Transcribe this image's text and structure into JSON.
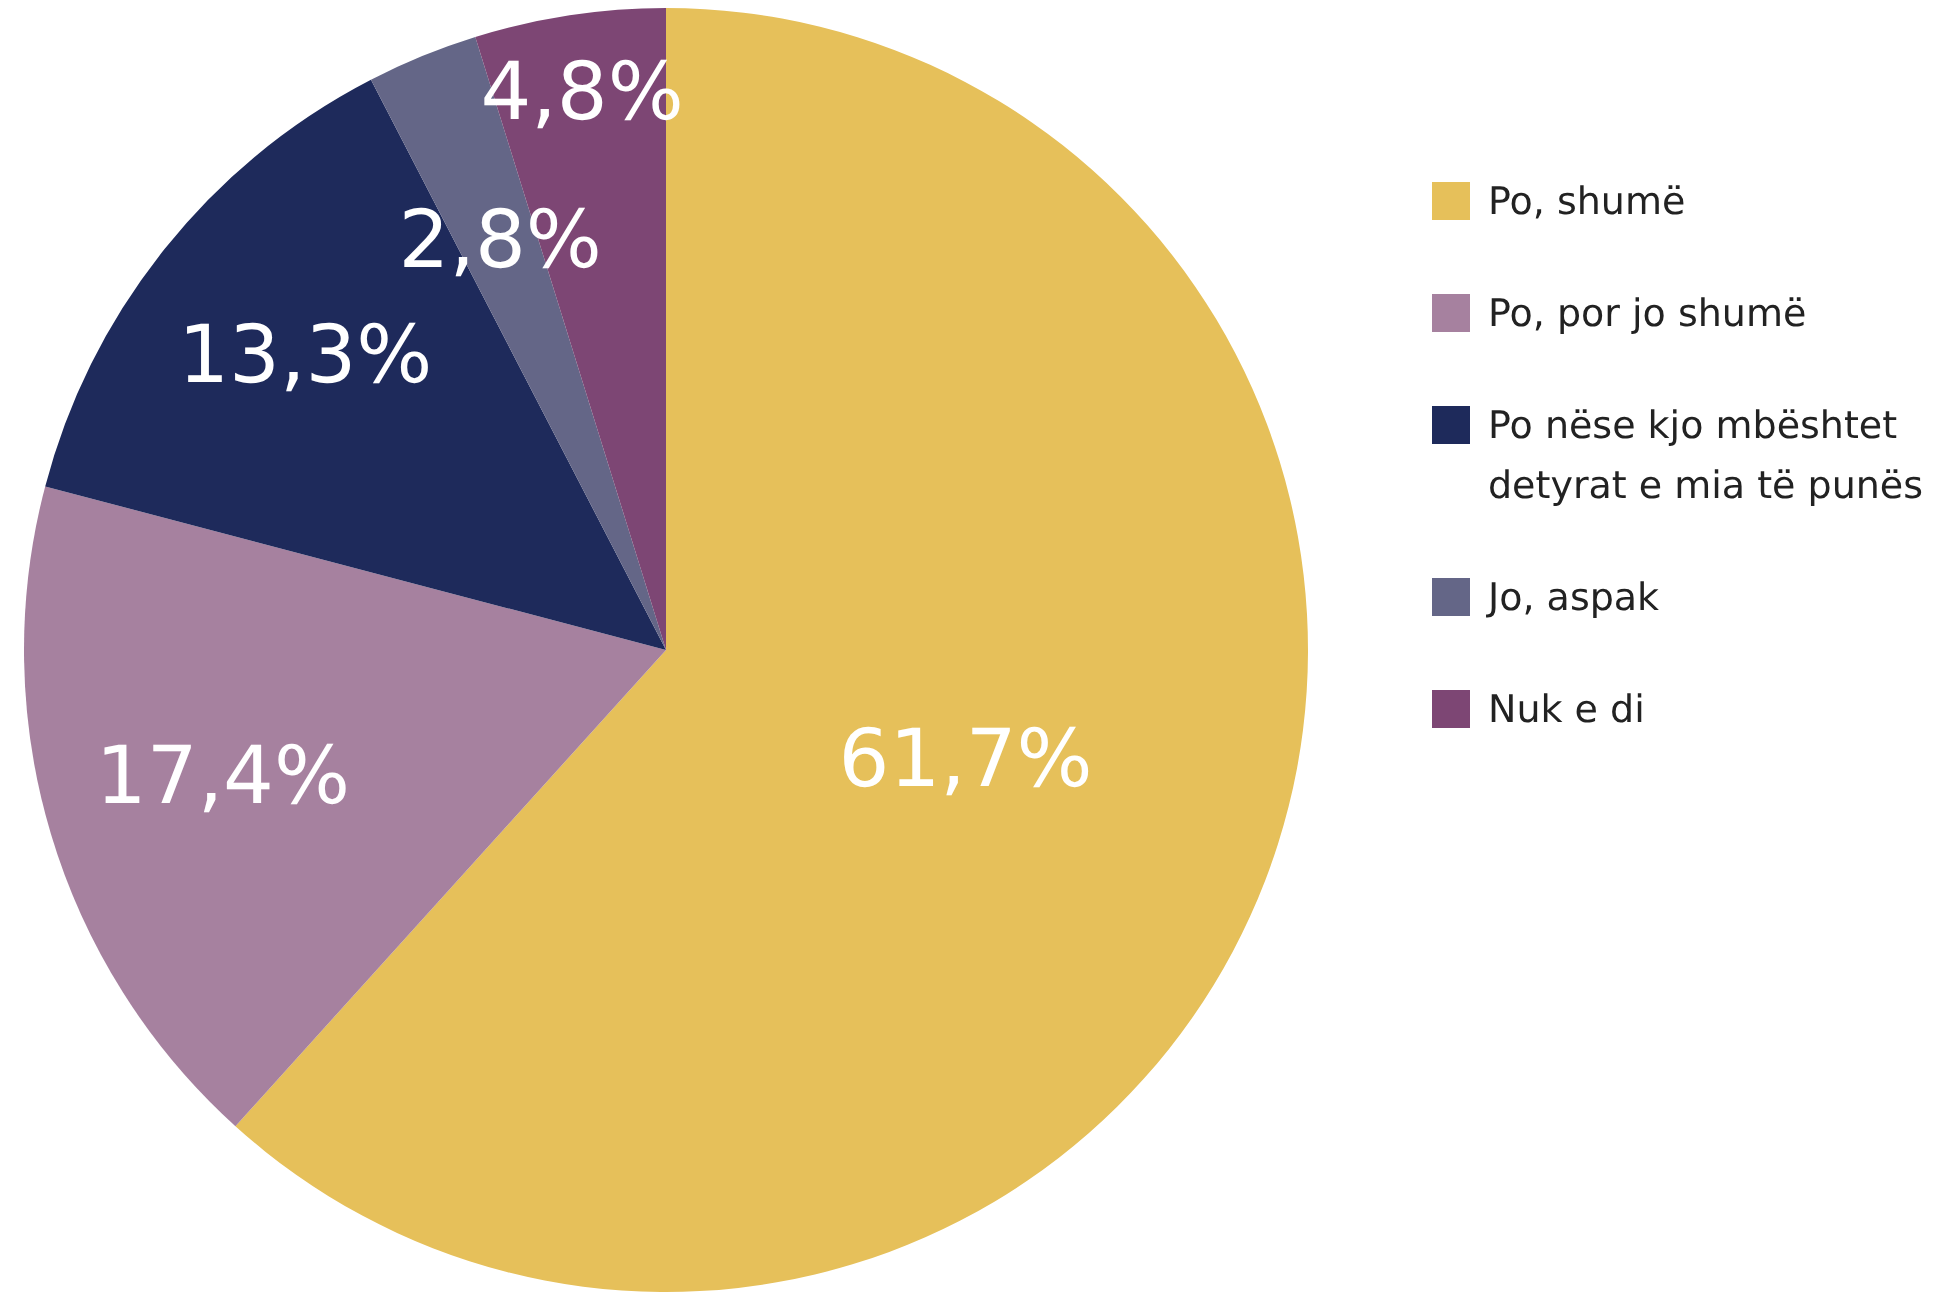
{
  "chart_data": {
    "type": "pie",
    "categories": [
      "Po, shumë",
      "Po, por jo shumë",
      "Po nëse kjo mbështet detyrat e mia të punës",
      "Jo, aspak",
      "Nuk e di"
    ],
    "values": [
      61.7,
      17.4,
      13.3,
      2.8,
      4.8
    ],
    "value_labels": [
      "61,7%",
      "17,4%",
      "13,3%",
      "2,8%",
      "4,8%"
    ],
    "colors": [
      "#e6c05a",
      "#a6819f",
      "#1e2a5b",
      "#646687",
      "#7d4674"
    ],
    "legend": "right"
  }
}
